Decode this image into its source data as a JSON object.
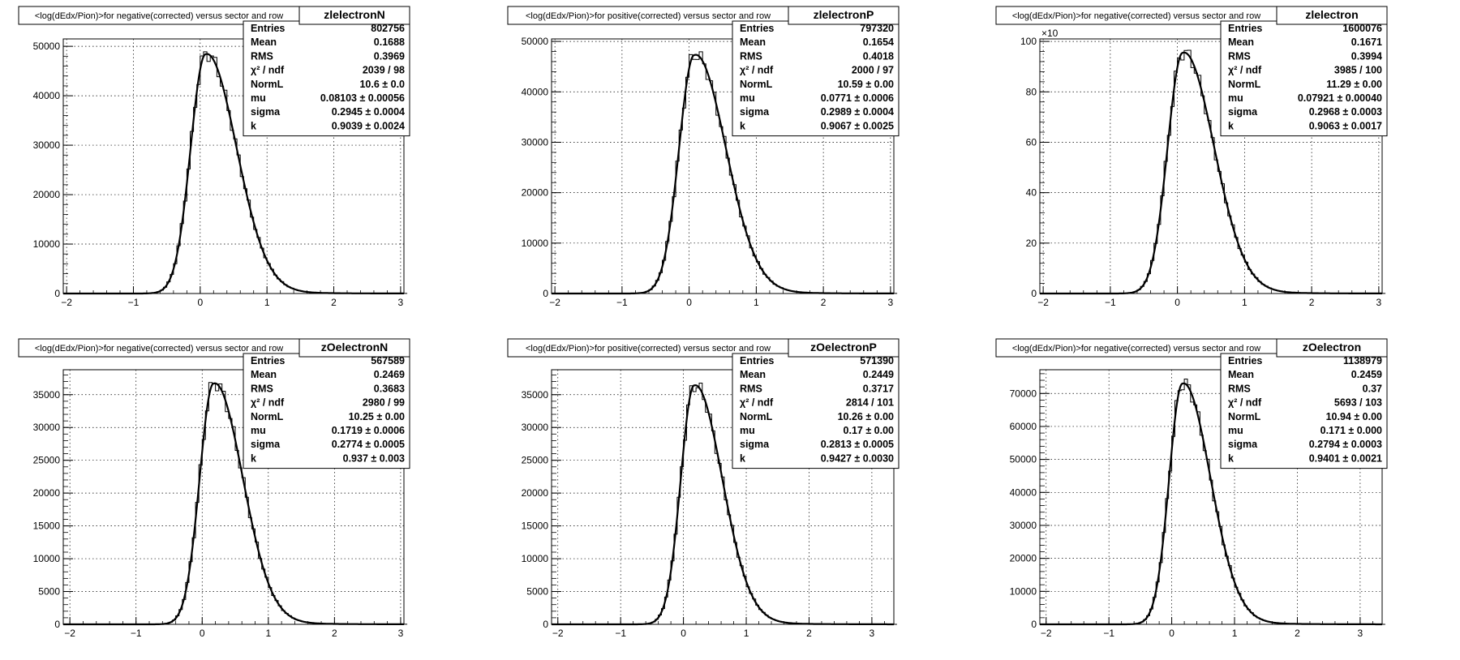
{
  "panels": [
    {
      "name": "zlelectronN",
      "title": "<log(dEdx/Pion)>for negative(corrected) versus sector and row",
      "exponent": "",
      "stats": [
        {
          "label": "Entries",
          "value": "802756"
        },
        {
          "label": "Mean",
          "value": "0.1688"
        },
        {
          "label": "RMS",
          "value": "0.3969"
        },
        {
          "label": "χ² / ndf",
          "value": "2039 / 98"
        },
        {
          "label": "NormL",
          "value": "10.6 ± 0.0"
        },
        {
          "label": "mu",
          "value": "0.08103 ± 0.00056"
        },
        {
          "label": "sigma",
          "value": "0.2945 ± 0.0004"
        },
        {
          "label": "k",
          "value": "0.9039 ± 0.0024"
        }
      ]
    },
    {
      "name": "zlelectronP",
      "title": "<log(dEdx/Pion)>for positive(corrected) versus sector and row",
      "exponent": "",
      "stats": [
        {
          "label": "Entries",
          "value": "797320"
        },
        {
          "label": "Mean",
          "value": "0.1654"
        },
        {
          "label": "RMS",
          "value": "0.4018"
        },
        {
          "label": "χ² / ndf",
          "value": "2000 / 97"
        },
        {
          "label": "NormL",
          "value": "10.59 ± 0.00"
        },
        {
          "label": "mu",
          "value": "0.0771 ± 0.0006"
        },
        {
          "label": "sigma",
          "value": "0.2989 ± 0.0004"
        },
        {
          "label": "k",
          "value": "0.9067 ± 0.0025"
        }
      ]
    },
    {
      "name": "zlelectron",
      "title": "<log(dEdx/Pion)>for negative(corrected) versus sector and row",
      "exponent": "×10",
      "stats": [
        {
          "label": "Entries",
          "value": "1600076"
        },
        {
          "label": "Mean",
          "value": "0.1671"
        },
        {
          "label": "RMS",
          "value": "0.3994"
        },
        {
          "label": "χ² / ndf",
          "value": "3985 / 100"
        },
        {
          "label": "NormL",
          "value": "11.29 ± 0.00"
        },
        {
          "label": "mu",
          "value": "0.07921 ± 0.00040"
        },
        {
          "label": "sigma",
          "value": "0.2968 ± 0.0003"
        },
        {
          "label": "k",
          "value": "0.9063 ± 0.0017"
        }
      ]
    },
    {
      "name": "zOelectronN",
      "title": "<log(dEdx/Pion)>for negative(corrected) versus sector and row",
      "exponent": "",
      "stats": [
        {
          "label": "Entries",
          "value": "567589"
        },
        {
          "label": "Mean",
          "value": "0.2469"
        },
        {
          "label": "RMS",
          "value": "0.3683"
        },
        {
          "label": "χ² / ndf",
          "value": "2980 / 99"
        },
        {
          "label": "NormL",
          "value": "10.25 ± 0.00"
        },
        {
          "label": "mu",
          "value": "0.1719 ± 0.0006"
        },
        {
          "label": "sigma",
          "value": "0.2774 ± 0.0005"
        },
        {
          "label": "k",
          "value": "0.937 ± 0.003"
        }
      ]
    },
    {
      "name": "zOelectronP",
      "title": "<log(dEdx/Pion)>for positive(corrected) versus sector and row",
      "exponent": "",
      "stats": [
        {
          "label": "Entries",
          "value": "571390"
        },
        {
          "label": "Mean",
          "value": "0.2449"
        },
        {
          "label": "RMS",
          "value": "0.3717"
        },
        {
          "label": "χ² / ndf",
          "value": "2814 / 101"
        },
        {
          "label": "NormL",
          "value": "10.26 ± 0.00"
        },
        {
          "label": "mu",
          "value": "0.17 ± 0.00"
        },
        {
          "label": "sigma",
          "value": "0.2813 ± 0.0005"
        },
        {
          "label": "k",
          "value": "0.9427 ± 0.0030"
        }
      ]
    },
    {
      "name": "zOelectron",
      "title": "<log(dEdx/Pion)>for negative(corrected) versus sector and row",
      "exponent": "",
      "stats": [
        {
          "label": "Entries",
          "value": "1138979"
        },
        {
          "label": "Mean",
          "value": "0.2459"
        },
        {
          "label": "RMS",
          "value": "0.37"
        },
        {
          "label": "χ² / ndf",
          "value": "5693 / 103"
        },
        {
          "label": "NormL",
          "value": "10.94 ± 0.00"
        },
        {
          "label": "mu",
          "value": "0.171 ± 0.000"
        },
        {
          "label": "sigma",
          "value": "0.2794 ± 0.0003"
        },
        {
          "label": "k",
          "value": "0.9401 ± 0.0021"
        }
      ]
    }
  ],
  "chart_data": [
    {
      "type": "line",
      "name": "zlelectronN",
      "xlim": [
        -2.05,
        3.05
      ],
      "ylim": [
        0,
        51500
      ],
      "xticks": [
        -2,
        -1,
        0,
        1,
        2,
        3
      ],
      "yticks": [
        0,
        10000,
        20000,
        30000,
        40000,
        50000
      ],
      "fit": {
        "amplitude": 48400,
        "mode": 0.08103,
        "sigma": 0.2945,
        "k": 0.9039
      },
      "grid": true
    },
    {
      "type": "line",
      "name": "zlelectronP",
      "xlim": [
        -2.05,
        3.05
      ],
      "ylim": [
        0,
        50500
      ],
      "xticks": [
        -2,
        -1,
        0,
        1,
        2,
        3
      ],
      "yticks": [
        0,
        10000,
        20000,
        30000,
        40000,
        50000
      ],
      "fit": {
        "amplitude": 47300,
        "mode": 0.0771,
        "sigma": 0.2989,
        "k": 0.9067
      },
      "grid": true
    },
    {
      "type": "line",
      "name": "zlelectron",
      "xlim": [
        -2.05,
        3.05
      ],
      "ylim": [
        0,
        101
      ],
      "xticks": [
        -2,
        -1,
        0,
        1,
        2,
        3
      ],
      "yticks": [
        0,
        20,
        40,
        60,
        80,
        100
      ],
      "fit": {
        "amplitude": 95.5,
        "mode": 0.07921,
        "sigma": 0.2968,
        "k": 0.9063
      },
      "grid": true
    },
    {
      "type": "line",
      "name": "zOelectronN",
      "xlim": [
        -2.1,
        3.05
      ],
      "ylim": [
        0,
        38800
      ],
      "xticks": [
        -2,
        -1,
        0,
        1,
        2,
        3
      ],
      "yticks": [
        0,
        5000,
        10000,
        15000,
        20000,
        25000,
        30000,
        35000
      ],
      "fit": {
        "amplitude": 36700,
        "mode": 0.1719,
        "sigma": 0.2774,
        "k": 0.937
      },
      "grid": true
    },
    {
      "type": "line",
      "name": "zOelectronP",
      "xlim": [
        -2.1,
        3.35
      ],
      "ylim": [
        0,
        38800
      ],
      "xticks": [
        -2,
        -1,
        0,
        1,
        2,
        3
      ],
      "yticks": [
        0,
        5000,
        10000,
        15000,
        20000,
        25000,
        30000,
        35000
      ],
      "fit": {
        "amplitude": 36400,
        "mode": 0.17,
        "sigma": 0.2813,
        "k": 0.9427
      },
      "grid": true
    },
    {
      "type": "line",
      "name": "zOelectron",
      "xlim": [
        -2.1,
        3.35
      ],
      "ylim": [
        0,
        77200
      ],
      "xticks": [
        -2,
        -1,
        0,
        1,
        2,
        3
      ],
      "yticks": [
        0,
        10000,
        20000,
        30000,
        40000,
        50000,
        60000,
        70000
      ],
      "fit": {
        "amplitude": 73000,
        "mode": 0.171,
        "sigma": 0.2794,
        "k": 0.9401
      },
      "grid": true
    }
  ]
}
